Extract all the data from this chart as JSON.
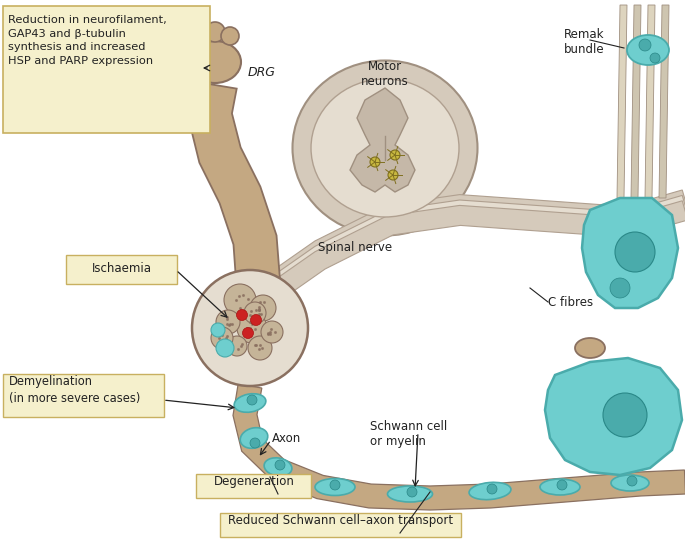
{
  "bg_color": "#ffffff",
  "lbc": "#f5f0cc",
  "lbe": "#c8b060",
  "nerve_color": "#c4a882",
  "schwann_color": "#6ecece",
  "schwann_dark": "#4aabab",
  "axon_color": "#c4a882",
  "spinal_color": "#d5cabb",
  "spinal_inner": "#e5ddd0",
  "remak_color": "#e0d8c5",
  "red_lesion": "#cc2222",
  "tc": "#222222",
  "labels": {
    "top_left": "Reduction in neurofilament,\nGAP43 and β-tubulin\nsynthesis and increased\nHSP and PARP expression",
    "drg": "DRG",
    "motor": "Motor\nneurons",
    "remak": "Remak\nbundle",
    "spinal": "Spinal nerve",
    "ischaemia": "Ischaemia",
    "c_fibres": "C fibres",
    "schwann": "Schwann cell\nor myelin",
    "axon": "Axon",
    "demyel": "Demyelination\n(in more severe cases)",
    "degen": "Degeneration",
    "transport": "Reduced Schwann cell–axon transport"
  }
}
